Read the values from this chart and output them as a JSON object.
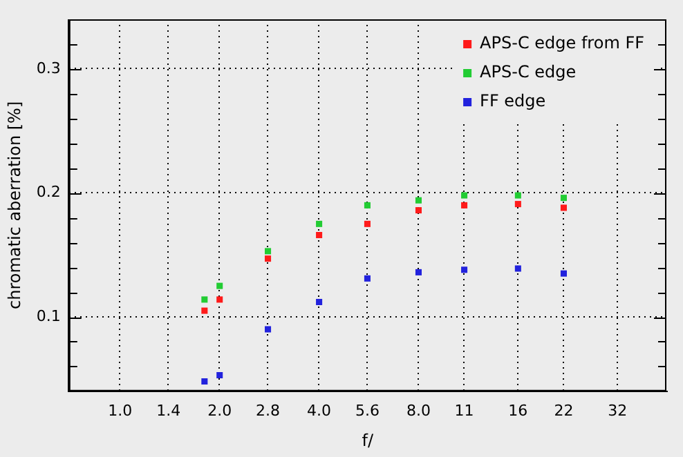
{
  "chart_data": {
    "type": "scatter",
    "xlabel": "f/",
    "ylabel": "chromatic aberration [%]",
    "log": "x",
    "xlim": [
      0.7,
      45
    ],
    "xticks": [
      {
        "value": 1,
        "label": "1.0"
      },
      1.4,
      {
        "value": 2,
        "label": "2.0"
      },
      2.8,
      {
        "value": 4,
        "label": "4.0"
      },
      5.6,
      {
        "value": 8,
        "label": "8.0"
      },
      11,
      16,
      22,
      32
    ],
    "ylim": [
      0.04,
      0.34
    ],
    "yticks": [
      {
        "value": 0.04,
        "label": null
      },
      {
        "value": 0.06,
        "label": null
      },
      {
        "value": 0.08,
        "label": null
      },
      0.1,
      {
        "value": 0.12,
        "label": null
      },
      {
        "value": 0.14,
        "label": null
      },
      {
        "value": 0.16,
        "label": null
      },
      {
        "value": 0.18,
        "label": null
      },
      0.2,
      {
        "value": 0.22,
        "label": null
      },
      {
        "value": 0.24,
        "label": null
      },
      {
        "value": 0.26,
        "label": null
      },
      {
        "value": 0.28,
        "label": null
      },
      0.3,
      {
        "value": 0.32,
        "label": null
      }
    ],
    "x": [
      1.8,
      2,
      2.8,
      4,
      5.6,
      8,
      11,
      16,
      22
    ],
    "series": [
      {
        "name": "APS-C edge from FF",
        "color": "#ff1a1a",
        "values": [
          0.105,
          0.114,
          0.147,
          0.166,
          0.175,
          0.186,
          0.19,
          0.191,
          0.188
        ]
      },
      {
        "name": "APS-C edge",
        "color": "#22cc33",
        "values": [
          0.114,
          0.125,
          0.153,
          0.175,
          0.19,
          0.194,
          0.198,
          0.198,
          0.196
        ]
      },
      {
        "name": "FF edge",
        "color": "#2222dd",
        "values": [
          0.048,
          0.053,
          0.09,
          0.112,
          0.131,
          0.136,
          0.138,
          0.139,
          0.135
        ]
      }
    ],
    "grid": true,
    "legend": "top right",
    "marker": "square"
  }
}
